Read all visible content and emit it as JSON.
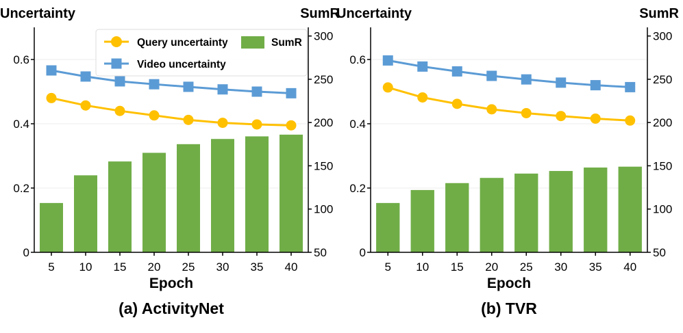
{
  "colors": {
    "bar": "#70ad47",
    "query_line": "#ffc000",
    "video_line": "#5b9bd5",
    "grid": "#eeeeee",
    "axis": "#000000"
  },
  "chart_data": [
    {
      "type": "bar+line",
      "title": "(a) ActivityNet",
      "xlabel": "Epoch",
      "ylabel_left": "Uncertainty",
      "ylabel_right": "SumR",
      "categories": [
        "5",
        "10",
        "15",
        "20",
        "25",
        "30",
        "35",
        "40"
      ],
      "ylim_left": [
        0,
        0.7
      ],
      "ylim_right": [
        50,
        310
      ],
      "yticks_left": [
        "0",
        "0.2",
        "0.4",
        "0.6"
      ],
      "yticks_right": [
        "50",
        "100",
        "150",
        "200",
        "250",
        "300"
      ],
      "grid": true,
      "legend_position": "top-right",
      "series": [
        {
          "name": "SumR",
          "kind": "bar",
          "axis": "right",
          "values": [
            107,
            139,
            155,
            165,
            175,
            181,
            184,
            186
          ]
        },
        {
          "name": "Query uncertainty",
          "kind": "line",
          "marker": "circle",
          "axis": "left",
          "values": [
            0.48,
            0.457,
            0.44,
            0.426,
            0.412,
            0.403,
            0.398,
            0.395
          ]
        },
        {
          "name": "Video uncertainty",
          "kind": "line",
          "marker": "square",
          "axis": "left",
          "values": [
            0.566,
            0.547,
            0.532,
            0.523,
            0.515,
            0.507,
            0.5,
            0.495
          ]
        }
      ]
    },
    {
      "type": "bar+line",
      "title": "(b) TVR",
      "xlabel": "Epoch",
      "ylabel_left": "Uncertainty",
      "ylabel_right": "SumR",
      "categories": [
        "5",
        "10",
        "15",
        "20",
        "25",
        "30",
        "35",
        "40"
      ],
      "ylim_left": [
        0,
        0.7
      ],
      "ylim_right": [
        50,
        310
      ],
      "yticks_left": [
        "0",
        "0.2",
        "0.4",
        "0.6"
      ],
      "yticks_right": [
        "50",
        "100",
        "150",
        "200",
        "250",
        "300"
      ],
      "grid": true,
      "legend_position": "none",
      "series": [
        {
          "name": "SumR",
          "kind": "bar",
          "axis": "right",
          "values": [
            107,
            122,
            130,
            136,
            141,
            144,
            148,
            149
          ]
        },
        {
          "name": "Query uncertainty",
          "kind": "line",
          "marker": "circle",
          "axis": "left",
          "values": [
            0.513,
            0.482,
            0.462,
            0.445,
            0.433,
            0.424,
            0.416,
            0.41
          ]
        },
        {
          "name": "Video uncertainty",
          "kind": "line",
          "marker": "square",
          "axis": "left",
          "values": [
            0.597,
            0.578,
            0.563,
            0.549,
            0.538,
            0.528,
            0.52,
            0.514
          ]
        }
      ]
    }
  ]
}
